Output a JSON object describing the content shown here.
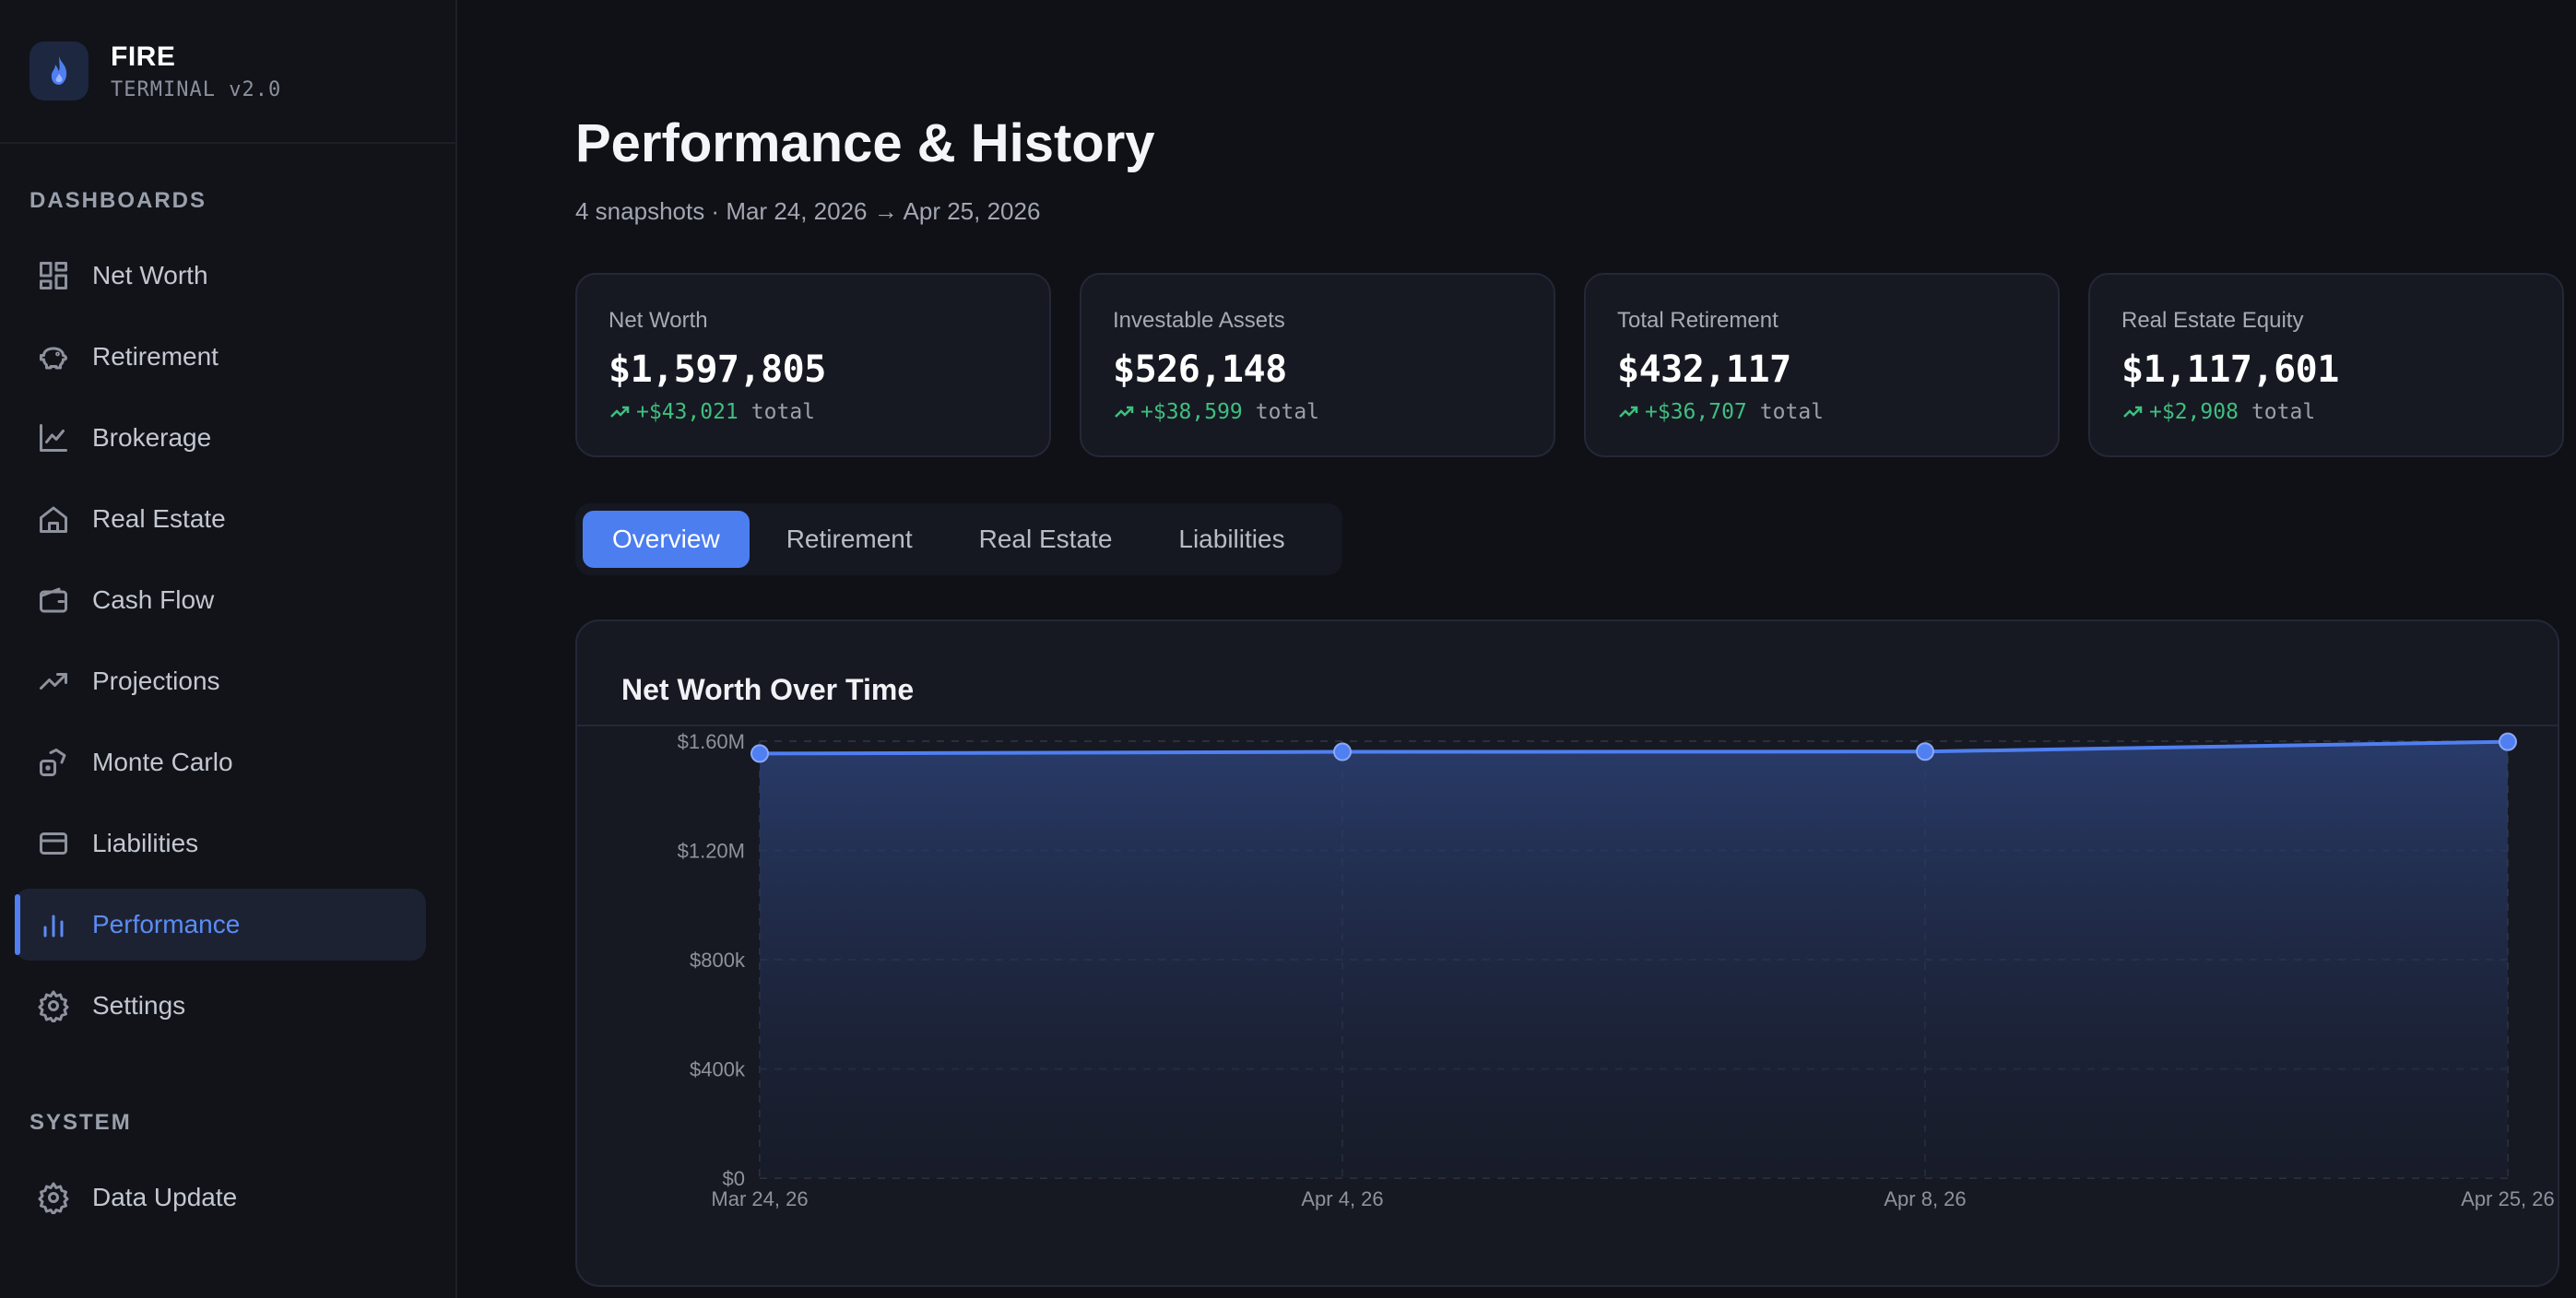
{
  "brand": {
    "title": "FIRE",
    "subtitle": "TERMINAL v2.0",
    "icon": "flame-icon",
    "accent": "#4f7ff0"
  },
  "sidebar": {
    "dashboards_label": "DASHBOARDS",
    "items": [
      {
        "label": "Net Worth",
        "icon": "grid-icon"
      },
      {
        "label": "Retirement",
        "icon": "piggy-bank-icon"
      },
      {
        "label": "Brokerage",
        "icon": "line-chart-icon"
      },
      {
        "label": "Real Estate",
        "icon": "home-icon"
      },
      {
        "label": "Cash Flow",
        "icon": "wallet-icon"
      },
      {
        "label": "Projections",
        "icon": "trending-up-icon"
      },
      {
        "label": "Monte Carlo",
        "icon": "dice-icon"
      },
      {
        "label": "Liabilities",
        "icon": "credit-card-icon"
      },
      {
        "label": "Performance",
        "icon": "bar-chart-icon",
        "active": true
      },
      {
        "label": "Settings",
        "icon": "gear-icon"
      }
    ],
    "system_label": "SYSTEM",
    "system_items": [
      {
        "label": "Data Update",
        "icon": "gear-icon"
      }
    ]
  },
  "page": {
    "title": "Performance & History",
    "subtitle": "4 snapshots · Mar 24, 2026 → Apr 25, 2026"
  },
  "stats": [
    {
      "label": "Net Worth",
      "value": "$1,597,805",
      "change": "+$43,021",
      "suffix": "total"
    },
    {
      "label": "Investable Assets",
      "value": "$526,148",
      "change": "+$38,599",
      "suffix": "total"
    },
    {
      "label": "Total Retirement",
      "value": "$432,117",
      "change": "+$36,707",
      "suffix": "total"
    },
    {
      "label": "Real Estate Equity",
      "value": "$1,117,601",
      "change": "+$2,908",
      "suffix": "total"
    }
  ],
  "tabs": [
    {
      "label": "Overview",
      "active": true
    },
    {
      "label": "Retirement"
    },
    {
      "label": "Real Estate"
    },
    {
      "label": "Liabilities"
    }
  ],
  "chart": {
    "title": "Net Worth Over Time"
  },
  "chart_data": {
    "type": "area",
    "title": "Net Worth Over Time",
    "categories": [
      "Mar 24, 26",
      "Apr 4, 26",
      "Apr 8, 26",
      "Apr 25, 26"
    ],
    "values": [
      1554784,
      1561000,
      1562000,
      1597805
    ],
    "ylim": [
      0,
      1600000
    ],
    "y_ticks": [
      {
        "value": 0,
        "label": "$0"
      },
      {
        "value": 400000,
        "label": "$400k"
      },
      {
        "value": 800000,
        "label": "$800k"
      },
      {
        "value": 1200000,
        "label": "$1.20M"
      },
      {
        "value": 1600000,
        "label": "$1.60M"
      }
    ],
    "grid": true,
    "line_color": "#4f7ff0"
  }
}
